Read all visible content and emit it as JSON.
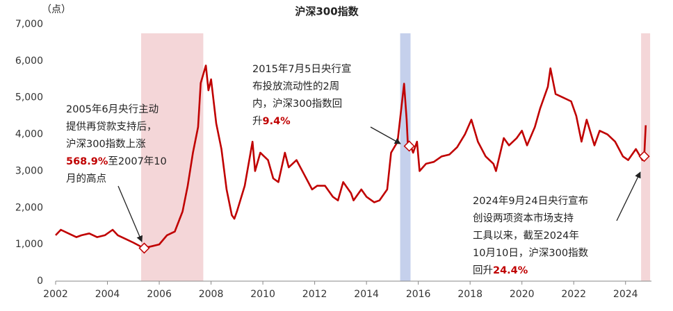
{
  "chart_data": {
    "type": "line",
    "title": "沪深300指数",
    "y_unit": "（点）",
    "xlim": [
      2002,
      2025
    ],
    "ylim": [
      0,
      7000
    ],
    "xticks": [
      2002,
      2004,
      2006,
      2008,
      2010,
      2012,
      2014,
      2016,
      2018,
      2020,
      2022,
      2024
    ],
    "yticks": [
      0,
      {
        "value": 1000,
        "label": "1,000"
      },
      {
        "value": 2000,
        "label": "2,000"
      },
      {
        "value": 3000,
        "label": "3,000"
      },
      {
        "value": 4000,
        "label": "4,000"
      },
      {
        "value": 5000,
        "label": "5,000"
      },
      {
        "value": 6000,
        "label": "6,000"
      },
      {
        "value": 7000,
        "label": "7,000"
      }
    ],
    "series": [
      {
        "name": "沪深300指数",
        "color": "#c00000",
        "x": [
          2002.0,
          2002.2,
          2002.5,
          2002.8,
          2003.0,
          2003.3,
          2003.6,
          2003.9,
          2004.2,
          2004.4,
          2004.7,
          2005.0,
          2005.4,
          2005.7,
          2006.0,
          2006.3,
          2006.6,
          2006.9,
          2007.1,
          2007.3,
          2007.5,
          2007.6,
          2007.8,
          2007.9,
          2008.0,
          2008.2,
          2008.4,
          2008.6,
          2008.8,
          2008.9,
          2009.0,
          2009.3,
          2009.6,
          2009.7,
          2009.9,
          2010.2,
          2010.4,
          2010.6,
          2010.85,
          2011.0,
          2011.3,
          2011.6,
          2011.9,
          2012.1,
          2012.4,
          2012.7,
          2012.9,
          2013.1,
          2013.4,
          2013.5,
          2013.8,
          2014.0,
          2014.3,
          2014.5,
          2014.8,
          2014.95,
          2015.2,
          2015.45,
          2015.55,
          2015.6,
          2015.65,
          2015.8,
          2015.95,
          2016.05,
          2016.3,
          2016.6,
          2016.9,
          2017.2,
          2017.5,
          2017.8,
          2018.05,
          2018.3,
          2018.6,
          2018.9,
          2019.0,
          2019.3,
          2019.5,
          2019.8,
          2020.0,
          2020.2,
          2020.5,
          2020.7,
          2021.0,
          2021.1,
          2021.3,
          2021.6,
          2021.9,
          2022.1,
          2022.3,
          2022.5,
          2022.8,
          2023.0,
          2023.3,
          2023.6,
          2023.9,
          2024.1,
          2024.4,
          2024.65,
          2024.72,
          2024.78
        ],
        "values": [
          1250,
          1400,
          1300,
          1200,
          1250,
          1300,
          1200,
          1250,
          1400,
          1250,
          1150,
          1050,
          900,
          950,
          1000,
          1250,
          1350,
          1900,
          2600,
          3500,
          4200,
          5400,
          5877,
          5200,
          5500,
          4300,
          3600,
          2500,
          1800,
          1700,
          1900,
          2600,
          3800,
          3000,
          3500,
          3300,
          2800,
          2700,
          3500,
          3100,
          3300,
          2900,
          2500,
          2600,
          2600,
          2300,
          2200,
          2700,
          2400,
          2200,
          2500,
          2300,
          2150,
          2200,
          2500,
          3500,
          3800,
          5380,
          4400,
          3700,
          3800,
          3500,
          3800,
          3000,
          3200,
          3250,
          3400,
          3450,
          3650,
          4000,
          4400,
          3800,
          3400,
          3200,
          3000,
          3900,
          3700,
          3900,
          4100,
          3700,
          4200,
          4700,
          5300,
          5800,
          5100,
          5000,
          4900,
          4500,
          3800,
          4400,
          3700,
          4100,
          4000,
          3800,
          3400,
          3300,
          3600,
          3300,
          3400,
          4250
        ]
      }
    ],
    "spans": [
      {
        "start": 2005.3,
        "end": 2007.7,
        "color": "#f4d6d8"
      },
      {
        "start": 2015.3,
        "end": 2015.7,
        "color": "#c5d0ec"
      },
      {
        "start": 2024.6,
        "end": 2024.95,
        "color": "#f4d6d8"
      }
    ],
    "markers": [
      {
        "x": 2005.42,
        "y": 900
      },
      {
        "x": 2015.65,
        "y": 3680
      },
      {
        "x": 2024.72,
        "y": 3400
      }
    ],
    "annotations": [
      {
        "lines": [
          [
            {
              "text": "2005年6月央行主动"
            }
          ],
          [
            {
              "text": "提供再贷款支持后，"
            }
          ],
          [
            {
              "text": "沪深300指数上涨"
            }
          ],
          [
            {
              "text": "568.9%",
              "color": "#c00000"
            },
            {
              "text": "至2007年10"
            }
          ],
          [
            {
              "text": "月的高点"
            }
          ]
        ]
      },
      {
        "lines": [
          [
            {
              "text": "2015年7月5日央行宣"
            }
          ],
          [
            {
              "text": "布投放流动性的2周"
            }
          ],
          [
            {
              "text": "内，沪深300指数回"
            }
          ],
          [
            {
              "text": "升"
            },
            {
              "text": "9.4%",
              "color": "#c00000"
            }
          ]
        ]
      },
      {
        "lines": [
          [
            {
              "text": "2024年9月24日央行宣布"
            }
          ],
          [
            {
              "text": "创设两项资本市场支持"
            }
          ],
          [
            {
              "text": "工具以来，截至2024年"
            }
          ],
          [
            {
              "text": "10月10日，沪深300指数"
            }
          ],
          [
            {
              "text": "回升"
            },
            {
              "text": "24.4%",
              "color": "#c00000"
            }
          ]
        ]
      }
    ]
  }
}
